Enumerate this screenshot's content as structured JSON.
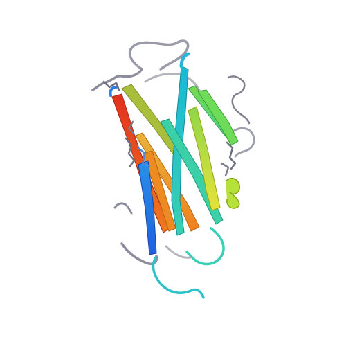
{
  "image": {
    "subject": "protein-ribbon-cartoon",
    "background_color": "#ffffff",
    "palette": {
      "loop_gray": "#8c8c9c",
      "stick_gray": "#6e6e7e",
      "blue": "#1f6fe6",
      "sky": "#2aa6e8",
      "cyan": "#1ec8c8",
      "teal": "#3ad0b0",
      "green": "#5fdc6e",
      "lime": "#b6e03a",
      "yellow": "#e6e23a",
      "orange": "#f08a1e",
      "red": "#e0301e",
      "olive": "#9fb43a"
    }
  }
}
